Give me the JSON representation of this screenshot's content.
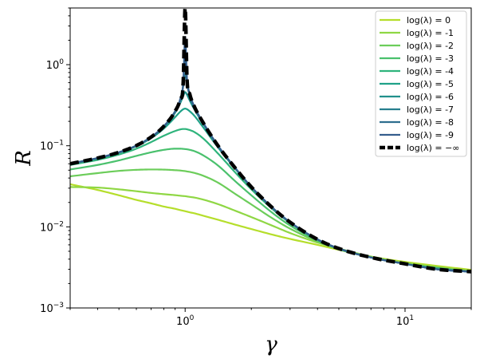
{
  "chart_data": {
    "type": "line",
    "title": "",
    "xlabel": "γ",
    "ylabel": "R",
    "x_scale": "log",
    "y_scale": "log",
    "xlim": [
      0.3,
      20
    ],
    "ylim": [
      0.001,
      5
    ],
    "x_ticks": [
      {
        "value": 1,
        "base": "10",
        "exp": "0"
      },
      {
        "value": 10,
        "base": "10",
        "exp": "1"
      }
    ],
    "y_ticks": [
      {
        "value": 0.001,
        "base": "10",
        "exp": "−3"
      },
      {
        "value": 0.01,
        "base": "10",
        "exp": "−2"
      },
      {
        "value": 0.1,
        "base": "10",
        "exp": "−1"
      },
      {
        "value": 1,
        "base": "10",
        "exp": "0"
      }
    ],
    "grid": false,
    "legend_position": "top-right",
    "x": [
      0.3,
      0.4,
      0.5,
      0.6,
      0.7,
      0.8,
      0.9,
      0.95,
      0.98,
      1.0,
      1.02,
      1.05,
      1.1,
      1.2,
      1.4,
      1.7,
      2.0,
      2.5,
      3.0,
      4.0,
      5.0,
      7.0,
      10.0,
      14.0,
      20.0
    ],
    "series": [
      {
        "name": "log(λ) = 0",
        "color": "#b5de2b",
        "width": 2.2,
        "dash": "",
        "values": [
          0.0335,
          0.0285,
          0.0245,
          0.0215,
          0.0195,
          0.0178,
          0.0167,
          0.0161,
          0.0158,
          0.0156,
          0.0154,
          0.0151,
          0.0147,
          0.0138,
          0.0123,
          0.0106,
          0.0094,
          0.008,
          0.0071,
          0.006,
          0.0052,
          0.0043,
          0.0037,
          0.0033,
          0.00295
        ]
      },
      {
        "name": "log(λ) = -1",
        "color": "#8fd744",
        "width": 2.2,
        "dash": "",
        "values": [
          0.031,
          0.0305,
          0.029,
          0.0275,
          0.0262,
          0.0253,
          0.0246,
          0.0242,
          0.024,
          0.0239,
          0.0237,
          0.0234,
          0.023,
          0.0218,
          0.0192,
          0.0157,
          0.0132,
          0.0103,
          0.0084,
          0.0064,
          0.0054,
          0.0043,
          0.0036,
          0.0032,
          0.00285
        ]
      },
      {
        "name": "log(λ) = -2",
        "color": "#6ccd5a",
        "width": 2.2,
        "dash": "",
        "values": [
          0.042,
          0.046,
          0.049,
          0.0505,
          0.051,
          0.0508,
          0.05,
          0.0495,
          0.049,
          0.0487,
          0.0482,
          0.0476,
          0.0463,
          0.043,
          0.0355,
          0.0252,
          0.0189,
          0.0127,
          0.0095,
          0.0066,
          0.0053,
          0.0042,
          0.0035,
          0.0031,
          0.0028
        ]
      },
      {
        "name": "log(λ) = -3",
        "color": "#4ac16d",
        "width": 2.2,
        "dash": "",
        "values": [
          0.051,
          0.058,
          0.066,
          0.075,
          0.083,
          0.089,
          0.092,
          0.092,
          0.0915,
          0.091,
          0.0905,
          0.089,
          0.086,
          0.077,
          0.058,
          0.036,
          0.0245,
          0.0148,
          0.0104,
          0.0068,
          0.0053,
          0.0042,
          0.0035,
          0.0031,
          0.0028
        ]
      },
      {
        "name": "log(λ) = -4",
        "color": "#2fb47c",
        "width": 2.2,
        "dash": "",
        "values": [
          0.058,
          0.067,
          0.078,
          0.092,
          0.111,
          0.133,
          0.152,
          0.159,
          0.161,
          0.161,
          0.1595,
          0.156,
          0.148,
          0.125,
          0.082,
          0.046,
          0.029,
          0.0165,
          0.0112,
          0.0069,
          0.0054,
          0.0042,
          0.0035,
          0.0031,
          0.0028
        ]
      },
      {
        "name": "log(λ) = -5",
        "color": "#1fa188",
        "width": 2.2,
        "dash": "",
        "values": [
          0.06,
          0.07,
          0.082,
          0.099,
          0.124,
          0.163,
          0.225,
          0.263,
          0.282,
          0.287,
          0.282,
          0.266,
          0.235,
          0.173,
          0.098,
          0.051,
          0.031,
          0.017,
          0.0114,
          0.007,
          0.0054,
          0.0042,
          0.0035,
          0.003,
          0.0028
        ]
      },
      {
        "name": "log(λ) = -6",
        "color": "#21918c",
        "width": 2.2,
        "dash": "",
        "values": [
          0.06,
          0.0705,
          0.0825,
          0.1,
          0.127,
          0.171,
          0.255,
          0.336,
          0.41,
          0.458,
          0.425,
          0.36,
          0.283,
          0.192,
          0.102,
          0.052,
          0.031,
          0.0171,
          0.0114,
          0.007,
          0.0054,
          0.0042,
          0.0035,
          0.003,
          0.0028
        ]
      },
      {
        "name": "log(λ) = -7",
        "color": "#277f8e",
        "width": 2.2,
        "dash": "",
        "values": [
          0.06,
          0.0705,
          0.083,
          0.1005,
          0.128,
          0.174,
          0.265,
          0.37,
          0.54,
          0.77,
          0.57,
          0.41,
          0.3,
          0.197,
          0.103,
          0.052,
          0.031,
          0.0171,
          0.0114,
          0.007,
          0.0054,
          0.0042,
          0.0035,
          0.003,
          0.0028
        ]
      },
      {
        "name": "log(λ) = -8",
        "color": "#2e6e8e",
        "width": 2.2,
        "dash": "",
        "values": [
          0.06,
          0.0705,
          0.083,
          0.1005,
          0.128,
          0.174,
          0.266,
          0.375,
          0.58,
          1.3,
          0.64,
          0.43,
          0.305,
          0.198,
          0.103,
          0.052,
          0.031,
          0.0171,
          0.0114,
          0.007,
          0.0054,
          0.0042,
          0.0035,
          0.003,
          0.0028
        ]
      },
      {
        "name": "log(λ) = -9",
        "color": "#355e8d",
        "width": 2.2,
        "dash": "",
        "values": [
          0.06,
          0.0705,
          0.083,
          0.1005,
          0.128,
          0.174,
          0.266,
          0.376,
          0.59,
          2.2,
          0.66,
          0.432,
          0.306,
          0.198,
          0.103,
          0.052,
          0.031,
          0.0171,
          0.0114,
          0.007,
          0.0054,
          0.0042,
          0.0035,
          0.003,
          0.0028
        ]
      },
      {
        "name": "log(λ) = −∞",
        "color": "#000000",
        "width": 4.5,
        "dash": "11,6",
        "values": [
          0.06,
          0.0705,
          0.083,
          0.1005,
          0.128,
          0.174,
          0.266,
          0.376,
          0.6,
          5.0,
          0.66,
          0.432,
          0.306,
          0.198,
          0.103,
          0.052,
          0.031,
          0.0171,
          0.0114,
          0.007,
          0.0054,
          0.0042,
          0.0035,
          0.003,
          0.0028
        ]
      }
    ]
  }
}
